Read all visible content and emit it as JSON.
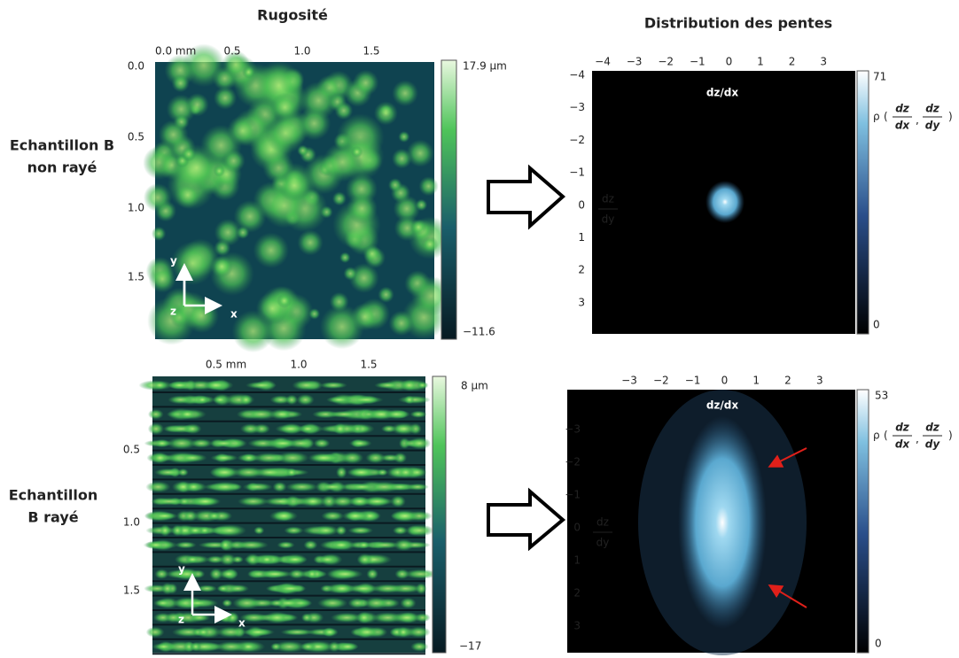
{
  "headers": {
    "left": "Rugosité",
    "right": "Distribution des pentes"
  },
  "rows": [
    {
      "label": [
        "Echantillon B",
        "non rayé"
      ],
      "map": {
        "x_ticks": [
          "0.0 mm",
          "0.5",
          "1.0",
          "1.5"
        ],
        "y_ticks": [
          "0.0",
          "0.5",
          "1.0",
          "1.5"
        ],
        "colorbar": {
          "max": "17.9 µm",
          "min": "−11.6"
        },
        "axes": {
          "y": "y",
          "z": "z",
          "x": "x"
        }
      },
      "slopes": {
        "x_label": "dz/dx",
        "y_label": {
          "num": "dz",
          "den": "dy"
        },
        "x_ticks": [
          "−4",
          "−3",
          "−2",
          "−1",
          "0",
          "1",
          "2",
          "3"
        ],
        "y_ticks": [
          "−4",
          "−3",
          "−2",
          "−1",
          "0",
          "1",
          "2",
          "3"
        ],
        "colorbar": {
          "max": "71",
          "min": "0",
          "label": {
            "symbol": "ρ",
            "terms": [
              {
                "num": "dz",
                "den": "dx"
              },
              {
                "num": "dz",
                "den": "dy"
              }
            ]
          }
        }
      }
    },
    {
      "label": [
        "Echantillon",
        "B rayé"
      ],
      "map": {
        "x_ticks": [
          "0.5 mm",
          "1.0",
          "1.5"
        ],
        "y_ticks": [
          "0.5",
          "1.0",
          "1.5"
        ],
        "colorbar": {
          "max": "8 µm",
          "min": "−17"
        },
        "axes": {
          "y": "y",
          "z": "z",
          "x": "x"
        }
      },
      "slopes": {
        "x_label": "dz/dx",
        "y_label": {
          "num": "dz",
          "den": "dy"
        },
        "x_ticks": [
          "−3",
          "−2",
          "−1",
          "0",
          "1",
          "2",
          "3"
        ],
        "y_ticks": [
          "−3",
          "−2",
          "−1",
          "0",
          "1",
          "2",
          "3"
        ],
        "colorbar": {
          "max": "53",
          "min": "0",
          "label": {
            "symbol": "ρ",
            "terms": [
              {
                "num": "dz",
                "den": "dx"
              },
              {
                "num": "dz",
                "den": "dy"
              }
            ]
          }
        }
      }
    }
  ]
}
